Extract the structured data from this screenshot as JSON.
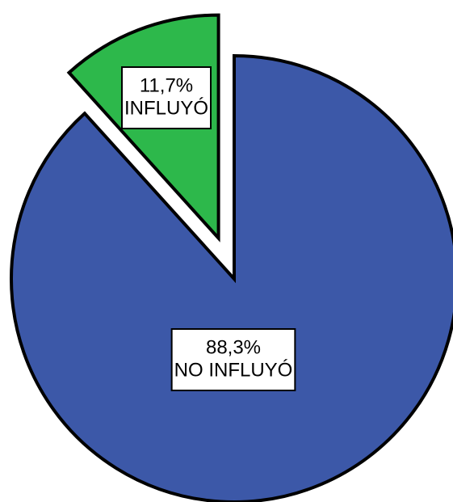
{
  "chart_data": {
    "type": "pie",
    "categories": [
      "NO INFLUYÓ",
      "INFLUYÓ"
    ],
    "values": [
      88.3,
      11.7
    ],
    "value_labels": [
      "88,3%",
      "11,7%"
    ],
    "colors": [
      "#3c58a8",
      "#2db84b"
    ],
    "exploded": [
      false,
      true
    ]
  }
}
